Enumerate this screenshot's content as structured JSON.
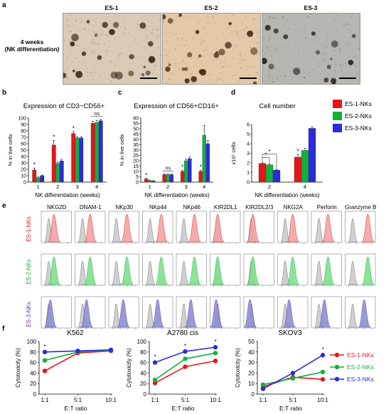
{
  "panel_a": {
    "label": "a",
    "condition_line1": "4 weeks",
    "condition_line2": "(NK differentiation)",
    "images": [
      {
        "title": "ES-1",
        "bg": "#d9cbb6",
        "dot": "#3a2a1c"
      },
      {
        "title": "ES-2",
        "bg": "#e3c9a8",
        "dot": "#4a2a14"
      },
      {
        "title": "ES-3",
        "bg": "#b8b6b0",
        "dot": "#2b2622"
      }
    ]
  },
  "legend_bcd": {
    "items": [
      {
        "label": "ES-1-NKs",
        "color": "#e8141b"
      },
      {
        "label": "ES-2-NKs",
        "color": "#12b03d"
      },
      {
        "label": "ES-3-NKs",
        "color": "#2b2bdc"
      }
    ]
  },
  "chart_data": [
    {
      "panel": "b",
      "type": "bar",
      "title": "Expression of CD3−CD56+",
      "xlabel": "NK differentiation (weeks)",
      "ylabel": "% in live cells",
      "ylim": [
        0,
        100
      ],
      "yticks": [
        "0",
        "10",
        "20",
        "30",
        "40",
        "50",
        "60",
        "70",
        "80",
        "90",
        "100"
      ],
      "categories": [
        "1",
        "2",
        "3",
        "4"
      ],
      "series": [
        {
          "name": "ES-1-NKs",
          "values": [
            19,
            58,
            76,
            92
          ],
          "err": [
            3,
            7,
            3,
            3
          ]
        },
        {
          "name": "ES-2-NKs",
          "values": [
            7,
            29,
            69,
            93
          ],
          "err": [
            1,
            2,
            2,
            3
          ]
        },
        {
          "name": "ES-3-NKs",
          "values": [
            10,
            33,
            69,
            96
          ],
          "err": [
            1,
            2,
            2,
            2
          ]
        }
      ],
      "annotations": [
        {
          "group": 0,
          "text": "*"
        },
        {
          "group": 1,
          "text": "*"
        },
        {
          "group": 2,
          "text": "*"
        },
        {
          "group": 3,
          "text": "ns"
        }
      ]
    },
    {
      "panel": "c",
      "type": "bar",
      "title": "Expression of CD56+CD16+",
      "xlabel": "NK differentiation (weeks)",
      "ylabel": "% in live cells",
      "ylim": [
        0,
        60
      ],
      "yticks": [
        "0",
        "5",
        "10",
        "15",
        "20",
        "25",
        "30",
        "35",
        "40",
        "45",
        "50",
        "55",
        "60"
      ],
      "categories": [
        "1",
        "2",
        "3",
        "4"
      ],
      "series": [
        {
          "name": "ES-1-NKs",
          "values": [
            3,
            7,
            10,
            10
          ],
          "err": [
            0.5,
            0.8,
            1,
            1
          ]
        },
        {
          "name": "ES-2-NKs",
          "values": [
            1.5,
            7,
            20,
            44
          ],
          "err": [
            0.4,
            0.5,
            1.5,
            9
          ]
        },
        {
          "name": "ES-3-NKs",
          "values": [
            1,
            7,
            22,
            36
          ],
          "err": [
            0.4,
            0.5,
            1.5,
            3
          ]
        }
      ],
      "annotations": [
        {
          "group": 0,
          "text": "*"
        },
        {
          "group": 1,
          "text": "ns"
        },
        {
          "group": 2,
          "text": "*"
        },
        {
          "group": 3,
          "text": "*"
        }
      ]
    },
    {
      "panel": "d",
      "type": "bar",
      "title": "Cell number",
      "xlabel": "NK differentiation (weeks)",
      "ylabel": "x10⁷ cells",
      "ylim": [
        0,
        6
      ],
      "yticks": [
        "0",
        "1",
        "2",
        "3",
        "4",
        "5",
        "6"
      ],
      "categories": [
        "2",
        "4"
      ],
      "series": [
        {
          "name": "ES-1-NKs",
          "values": [
            1.95,
            2.6
          ],
          "err": [
            0.05,
            0.25
          ]
        },
        {
          "name": "ES-2-NKs",
          "values": [
            1.8,
            3.3
          ],
          "err": [
            0.05,
            0.2
          ]
        },
        {
          "name": "ES-3-NKs",
          "values": [
            1.25,
            5.6
          ],
          "err": [
            0.05,
            0.15
          ]
        }
      ],
      "annotations": [
        {
          "group": 1,
          "text": "*"
        }
      ],
      "brackets": [
        "*",
        "*"
      ]
    },
    {
      "panel": "e",
      "type": "histogram-grid",
      "markers": [
        "NKG2D",
        "DNAM-1",
        "NKp30",
        "NKp44",
        "NKp46",
        "KIR2DL1",
        "KIR2DL2/3",
        "NKG2A",
        "Perforin",
        "Granzyme B"
      ],
      "rows": [
        {
          "name": "ES-1-NKs",
          "color": "#e8141b",
          "fill": "#f4a3a3"
        },
        {
          "name": "ES-2-NKs",
          "color": "#12b03d",
          "fill": "#7fe08a"
        },
        {
          "name": "ES-3-NKs",
          "color": "#5a36c8",
          "fill": "#8f8fd0"
        }
      ]
    },
    {
      "panel": "f",
      "type": "line",
      "title": "K562",
      "xlabel": "E:T ratio",
      "ylabel": "Cytotoxicity (%)",
      "x": [
        "1:1",
        "5:1",
        "10:1"
      ],
      "ylim": [
        0,
        100
      ],
      "yticks": [
        "0",
        "20",
        "40",
        "60",
        "80",
        "100"
      ],
      "series": [
        {
          "name": "ES-1-NKs",
          "values": [
            44,
            78,
            82
          ]
        },
        {
          "name": "ES-2-NKs",
          "values": [
            64,
            80,
            83
          ]
        },
        {
          "name": "ES-3-NKs",
          "values": [
            80,
            82,
            84
          ]
        }
      ],
      "annotations": [
        {
          "point": 0,
          "text": "*"
        }
      ]
    },
    {
      "panel": "f",
      "type": "line",
      "title": "A2780 cis",
      "xlabel": "E:T ratio",
      "ylabel": "Cytotoxicity (%)",
      "x": [
        "1:1",
        "5:1",
        "10:1"
      ],
      "ylim": [
        0,
        100
      ],
      "yticks": [
        "0",
        "20",
        "40",
        "60",
        "80",
        "100"
      ],
      "series": [
        {
          "name": "ES-1-NKs",
          "values": [
            21,
            52,
            63
          ]
        },
        {
          "name": "ES-2-NKs",
          "values": [
            27,
            67,
            78
          ]
        },
        {
          "name": "ES-3-NKs",
          "values": [
            60,
            81,
            89
          ]
        }
      ],
      "annotations": [
        {
          "point": 0,
          "text": "*"
        },
        {
          "point": 1,
          "text": "*"
        },
        {
          "point": 2,
          "text": "*"
        }
      ]
    },
    {
      "panel": "f",
      "type": "line",
      "title": "SKOV3",
      "xlabel": "E:T ratio",
      "ylabel": "Cytotoxicity (%)",
      "x": [
        "1:1",
        "5:1",
        "10:1"
      ],
      "ylim": [
        0,
        50
      ],
      "yticks": [
        "0",
        "10",
        "20",
        "30",
        "40",
        "50"
      ],
      "series": [
        {
          "name": "ES-1-NKs",
          "values": [
            7,
            16,
            14
          ]
        },
        {
          "name": "ES-2-NKs",
          "values": [
            9,
            15,
            21
          ]
        },
        {
          "name": "ES-3-NKs",
          "values": [
            5,
            20,
            37
          ]
        }
      ],
      "annotations": [
        {
          "point": 2,
          "text": "*"
        }
      ]
    }
  ]
}
